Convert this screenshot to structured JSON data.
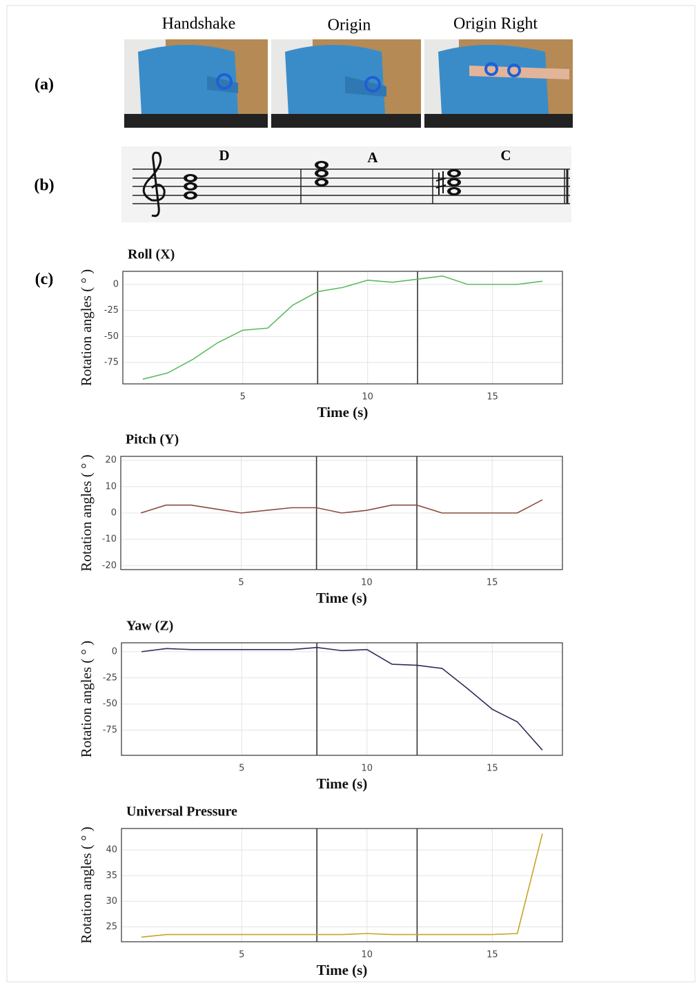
{
  "panels": {
    "a": "(a)",
    "b": "(b)",
    "c": "(c)"
  },
  "photos": [
    "Handshake",
    "Origin",
    "Origin Right"
  ],
  "chords": [
    "D",
    "A",
    "C"
  ],
  "chart_data": [
    {
      "type": "line",
      "title": "Roll (X)",
      "xlabel": "Time (s)",
      "ylabel": "Rotation angles ( ° )",
      "x": [
        1,
        2,
        3,
        4,
        5,
        6,
        7,
        8,
        9,
        10,
        11,
        12,
        13,
        14,
        15,
        16,
        17
      ],
      "values": [
        -91,
        -85,
        -72,
        -56,
        -44,
        -42,
        -20,
        -7,
        -3,
        4,
        2,
        5,
        8,
        0,
        0,
        0,
        3
      ],
      "color": "#5dbb5d",
      "xlim": [
        0.2,
        17.8
      ],
      "ylim": [
        -95.5,
        12.5
      ],
      "xticks": [
        5,
        10,
        15
      ],
      "yticks": [
        0,
        -25,
        -50,
        -75
      ],
      "vlines": [
        8,
        12
      ],
      "grid": true
    },
    {
      "type": "line",
      "title": "Pitch (Y)",
      "xlabel": "Time (s)",
      "ylabel": "Rotation angles ( ° )",
      "x": [
        1,
        2,
        3,
        4,
        5,
        6,
        7,
        8,
        9,
        10,
        11,
        12,
        13,
        14,
        15,
        16,
        17
      ],
      "values": [
        0,
        3,
        3,
        1.5,
        0,
        1,
        2,
        2,
        0,
        1,
        3,
        3,
        0,
        0,
        0,
        0,
        5
      ],
      "color": "#8b4a3c",
      "xlim": [
        0.2,
        17.8
      ],
      "ylim": [
        -21.5,
        21.5
      ],
      "xticks": [
        5,
        10,
        15
      ],
      "yticks": [
        20,
        10,
        0,
        -10,
        -20
      ],
      "vlines": [
        8,
        12
      ],
      "grid": true
    },
    {
      "type": "line",
      "title": "Yaw (Z)",
      "xlabel": "Time (s)",
      "ylabel": "Rotation angles ( ° )",
      "x": [
        1,
        2,
        3,
        4,
        5,
        6,
        7,
        8,
        9,
        10,
        11,
        12,
        13,
        14,
        15,
        16,
        17
      ],
      "values": [
        0,
        3,
        2,
        2,
        2,
        2,
        2,
        4,
        1,
        2,
        -12,
        -13,
        -16,
        -35,
        -55,
        -67,
        -94
      ],
      "color": "#2b2d5a",
      "xlim": [
        0.2,
        17.8
      ],
      "ylim": [
        -99,
        8.5
      ],
      "xticks": [
        5,
        10,
        15
      ],
      "yticks": [
        0,
        -25,
        -50,
        -75
      ],
      "vlines": [
        8,
        12
      ],
      "grid": true
    },
    {
      "type": "line",
      "title": "Universal Pressure",
      "xlabel": "Time (s)",
      "ylabel": "Rotation angles ( ° )",
      "x": [
        1,
        2,
        3,
        4,
        5,
        6,
        7,
        8,
        9,
        10,
        11,
        12,
        13,
        14,
        15,
        16,
        17
      ],
      "values": [
        23,
        23.5,
        23.5,
        23.5,
        23.5,
        23.5,
        23.5,
        23.5,
        23.5,
        23.7,
        23.5,
        23.5,
        23.5,
        23.5,
        23.5,
        23.7,
        43.2
      ],
      "color": "#c9a227",
      "xlim": [
        0.2,
        17.8
      ],
      "ylim": [
        22.1,
        44.2
      ],
      "xticks": [
        5,
        10,
        15
      ],
      "yticks": [
        40,
        35,
        30,
        25
      ],
      "vlines": [
        8,
        12
      ],
      "grid": true
    }
  ]
}
